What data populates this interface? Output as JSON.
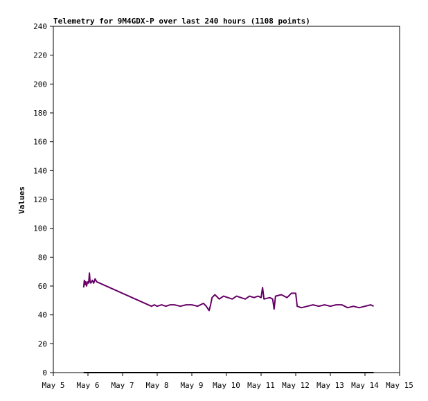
{
  "chart_data": {
    "type": "line",
    "title": "Telemetry for 9M4GDX-P over last 240 hours (1108 points)",
    "xlabel": "",
    "ylabel": "Values",
    "x_ticks": [
      "May 5",
      "May 6",
      "May 7",
      "May 8",
      "May 9",
      "May 10",
      "May 11",
      "May 12",
      "May 13",
      "May 14",
      "May 15"
    ],
    "xlim": [
      "2024-05-05T00:00",
      "2024-05-15T00:00"
    ],
    "y_ticks": [
      0,
      20,
      40,
      60,
      80,
      100,
      120,
      140,
      160,
      180,
      200,
      220,
      240
    ],
    "ylim": [
      0,
      240
    ],
    "grid": false,
    "series": [
      {
        "color": "#660066",
        "points": [
          [
            "2024-05-05T21:00",
            59
          ],
          [
            "2024-05-05T21:30",
            64
          ],
          [
            "2024-05-05T22:00",
            61
          ],
          [
            "2024-05-05T22:30",
            63
          ],
          [
            "2024-05-05T23:00",
            60
          ],
          [
            "2024-05-05T23:30",
            62
          ],
          [
            "2024-05-06T00:00",
            63
          ],
          [
            "2024-05-06T00:30",
            62
          ],
          [
            "2024-05-06T01:00",
            69
          ],
          [
            "2024-05-06T01:30",
            63
          ],
          [
            "2024-05-06T02:00",
            62
          ],
          [
            "2024-05-06T03:00",
            64
          ],
          [
            "2024-05-06T04:00",
            62
          ],
          [
            "2024-05-06T05:00",
            65
          ],
          [
            "2024-05-06T06:00",
            63
          ],
          [
            "2024-05-07T20:00",
            46
          ],
          [
            "2024-05-07T22:00",
            47
          ],
          [
            "2024-05-08T00:00",
            46
          ],
          [
            "2024-05-08T03:00",
            47
          ],
          [
            "2024-05-08T06:00",
            46
          ],
          [
            "2024-05-08T09:00",
            47
          ],
          [
            "2024-05-08T12:00",
            47
          ],
          [
            "2024-05-08T16:00",
            46
          ],
          [
            "2024-05-08T20:00",
            47
          ],
          [
            "2024-05-09T00:00",
            47
          ],
          [
            "2024-05-09T04:00",
            46
          ],
          [
            "2024-05-09T08:00",
            48
          ],
          [
            "2024-05-09T10:00",
            46
          ],
          [
            "2024-05-09T12:00",
            43
          ],
          [
            "2024-05-09T13:00",
            47
          ],
          [
            "2024-05-09T14:00",
            52
          ],
          [
            "2024-05-09T16:00",
            54
          ],
          [
            "2024-05-09T19:00",
            51
          ],
          [
            "2024-05-09T22:00",
            53
          ],
          [
            "2024-05-10T01:00",
            52
          ],
          [
            "2024-05-10T04:00",
            51
          ],
          [
            "2024-05-10T07:00",
            53
          ],
          [
            "2024-05-10T10:00",
            52
          ],
          [
            "2024-05-10T13:00",
            51
          ],
          [
            "2024-05-10T16:00",
            53
          ],
          [
            "2024-05-10T19:00",
            52
          ],
          [
            "2024-05-10T22:00",
            53
          ],
          [
            "2024-05-11T00:00",
            52
          ],
          [
            "2024-05-11T01:00",
            59
          ],
          [
            "2024-05-11T02:00",
            51
          ],
          [
            "2024-05-11T06:00",
            52
          ],
          [
            "2024-05-11T08:00",
            51
          ],
          [
            "2024-05-11T09:00",
            44
          ],
          [
            "2024-05-11T10:00",
            53
          ],
          [
            "2024-05-11T14:00",
            54
          ],
          [
            "2024-05-11T18:00",
            52
          ],
          [
            "2024-05-11T21:00",
            55
          ],
          [
            "2024-05-12T00:00",
            55
          ],
          [
            "2024-05-12T01:00",
            46
          ],
          [
            "2024-05-12T04:00",
            45
          ],
          [
            "2024-05-12T08:00",
            46
          ],
          [
            "2024-05-12T12:00",
            47
          ],
          [
            "2024-05-12T16:00",
            46
          ],
          [
            "2024-05-12T20:00",
            47
          ],
          [
            "2024-05-13T00:00",
            46
          ],
          [
            "2024-05-13T04:00",
            47
          ],
          [
            "2024-05-13T08:00",
            47
          ],
          [
            "2024-05-13T12:00",
            45
          ],
          [
            "2024-05-13T16:00",
            46
          ],
          [
            "2024-05-13T20:00",
            45
          ],
          [
            "2024-05-14T00:00",
            46
          ],
          [
            "2024-05-14T04:00",
            47
          ],
          [
            "2024-05-14T06:00",
            46
          ]
        ]
      },
      {
        "color": "#000000",
        "points": [
          [
            "2024-05-05T21:00",
            0
          ],
          [
            "2024-05-14T06:00",
            0
          ]
        ]
      }
    ]
  }
}
